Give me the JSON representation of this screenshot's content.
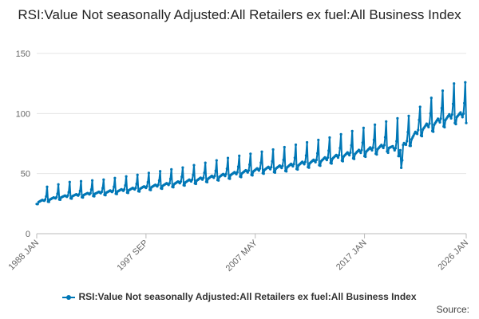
{
  "chart_data": {
    "type": "line",
    "title": "RSI:Value Not seasonally Adjusted:All Retailers ex fuel:All Business Index",
    "xlabel": "",
    "ylabel": "",
    "ylim": [
      0,
      150
    ],
    "y_ticks": [
      "0",
      "50",
      "100",
      "150"
    ],
    "x_range": [
      "1988 JAN",
      "2026 JAN"
    ],
    "x_ticks": [
      "1988 JAN",
      "1997 SEP",
      "2007 MAY",
      "2017 JAN",
      "2026 JAN"
    ],
    "grid": "horizontal",
    "legend_position": "bottom",
    "series": [
      {
        "name": "RSI:Value Not seasonally Adjusted:All Retailers ex fuel:All Business Index",
        "color": "#0077b6",
        "approx_values": {
          "description_free": true,
          "baseline_by_year": [
            [
              1988,
              26
            ],
            [
              1990,
              30
            ],
            [
              1993,
              33
            ],
            [
              1996,
              36
            ],
            [
              2000,
              41
            ],
            [
              2004,
              47
            ],
            [
              2008,
              53
            ],
            [
              2010,
              55
            ],
            [
              2013,
              60
            ],
            [
              2016,
              66
            ],
            [
              2019,
              72
            ],
            [
              2020,
              68
            ],
            [
              2022,
              86
            ],
            [
              2024,
              94
            ],
            [
              2025,
              97
            ]
          ],
          "december_peak_by_year": [
            [
              1988,
              39
            ],
            [
              1990,
              43
            ],
            [
              1993,
              45
            ],
            [
              1996,
              49
            ],
            [
              2000,
              55
            ],
            [
              2004,
              63
            ],
            [
              2008,
              70
            ],
            [
              2010,
              74
            ],
            [
              2013,
              80
            ],
            [
              2016,
              88
            ],
            [
              2019,
              96
            ],
            [
              2020,
              98
            ],
            [
              2022,
              113
            ],
            [
              2024,
              125
            ],
            [
              2025,
              126
            ]
          ]
        }
      }
    ]
  },
  "footer": {
    "source_label": "Source:"
  }
}
